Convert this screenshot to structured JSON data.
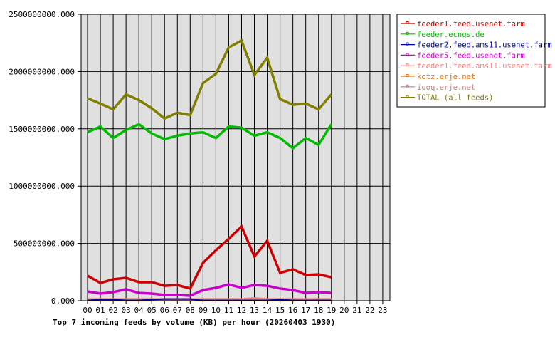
{
  "chart_data": {
    "type": "line",
    "title": "Top 7 incoming feeds by volume (KB) per hour (20260403 1930)",
    "xlabel": "",
    "ylabel": "",
    "ylim": [
      0,
      2500000000
    ],
    "yticks": [
      "0.000",
      "500000000.000",
      "1000000000.000",
      "1500000000.000",
      "2000000000.000",
      "2500000000.000"
    ],
    "categories": [
      "00",
      "01",
      "02",
      "03",
      "04",
      "05",
      "06",
      "07",
      "08",
      "09",
      "10",
      "11",
      "12",
      "13",
      "14",
      "15",
      "16",
      "17",
      "18",
      "19",
      "20",
      "21",
      "22",
      "23"
    ],
    "grid": true,
    "legend_position": "right",
    "series": [
      {
        "name": "feeder1.feed.usenet.farm",
        "color": "#cc0000",
        "values": [
          218000000,
          155000000,
          187000000,
          199000000,
          162000000,
          162000000,
          130000000,
          137000000,
          106000000,
          330000000,
          440000000,
          540000000,
          647000000,
          386000000,
          522000000,
          243000000,
          274000000,
          224000000,
          230000000,
          205000000
        ]
      },
      {
        "name": "feeder.ecngs.de",
        "color": "#00bb00",
        "values": [
          1470000000,
          1520000000,
          1420000000,
          1490000000,
          1540000000,
          1460000000,
          1410000000,
          1440000000,
          1460000000,
          1470000000,
          1420000000,
          1520000000,
          1510000000,
          1440000000,
          1470000000,
          1420000000,
          1330000000,
          1420000000,
          1360000000,
          1540000000
        ]
      },
      {
        "name": "feeder2.feed.ams11.usenet.farm",
        "color": "#0000aa",
        "values": [
          2000000,
          10000000,
          10000000,
          2000000,
          2000000,
          10000000,
          15000000,
          15000000,
          15000000,
          2000000,
          2000000,
          2000000,
          2000000,
          2000000,
          2000000,
          10000000,
          2000000,
          2000000,
          2000000,
          2000000
        ]
      },
      {
        "name": "feeder5.feed.usenet.farm",
        "color": "#cc00cc",
        "values": [
          81000000,
          62000000,
          75000000,
          100000000,
          68000000,
          62000000,
          50000000,
          50000000,
          44000000,
          93000000,
          112000000,
          143000000,
          112000000,
          137000000,
          130000000,
          106000000,
          93000000,
          68000000,
          75000000,
          68000000
        ]
      },
      {
        "name": "feeder1.feed.ams11.usenet.farm",
        "color": "#f08080",
        "values": [
          12000000,
          12000000,
          12000000,
          12000000,
          12000000,
          12000000,
          12000000,
          12000000,
          12000000,
          12000000,
          12000000,
          12000000,
          12000000,
          20000000,
          12000000,
          12000000,
          12000000,
          12000000,
          12000000,
          12000000
        ]
      },
      {
        "name": "kotz.erje.net",
        "color": "#ee7700",
        "values": [
          1000000,
          1000000,
          1000000,
          1000000,
          1000000,
          1000000,
          1000000,
          3000000,
          1000000,
          1000000,
          1000000,
          1000000,
          1000000,
          1000000,
          1000000,
          1000000,
          1000000,
          5000000,
          1000000,
          1000000
        ]
      },
      {
        "name": "iqoq.erje.net",
        "color": "#c08080",
        "values": [
          8000000,
          8000000,
          8000000,
          8000000,
          8000000,
          8000000,
          8000000,
          8000000,
          8000000,
          8000000,
          8000000,
          8000000,
          8000000,
          8000000,
          8000000,
          8000000,
          8000000,
          8000000,
          8000000,
          8000000
        ]
      },
      {
        "name": "TOTAL (all feeds)",
        "color": "#808000",
        "values": [
          1766000000,
          1720000000,
          1670000000,
          1800000000,
          1750000000,
          1680000000,
          1590000000,
          1640000000,
          1620000000,
          1900000000,
          1980000000,
          2210000000,
          2270000000,
          1970000000,
          2120000000,
          1760000000,
          1710000000,
          1720000000,
          1670000000,
          1800000000
        ]
      }
    ]
  },
  "caption": "Top 7 incoming feeds by volume (KB) per hour (20260403 1930)"
}
